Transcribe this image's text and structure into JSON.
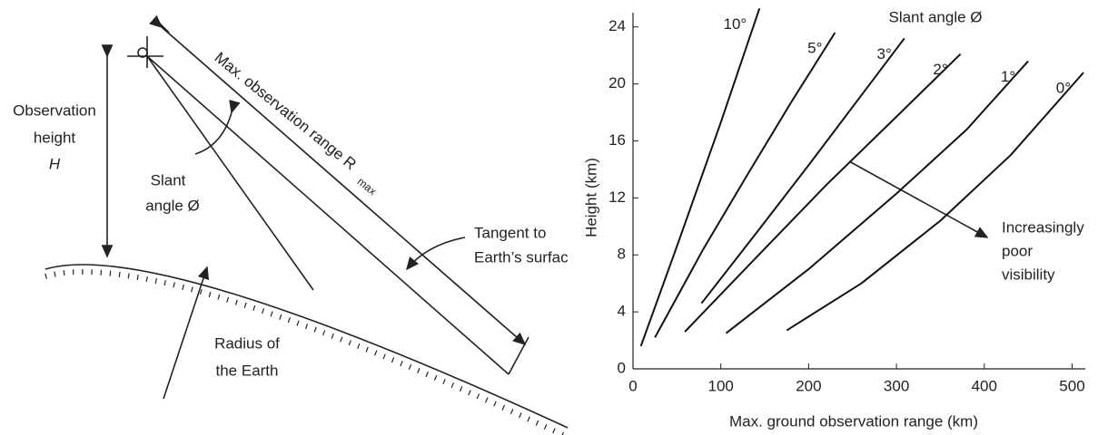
{
  "diagram": {
    "observation_height": [
      "Observation",
      "height",
      "H"
    ],
    "slant_angle": [
      "Slant",
      "angle Ø"
    ],
    "max_range": "Max. observation range R",
    "max_range_sub": "max",
    "tangent": [
      "Tangent to",
      "Earth’s surfac"
    ],
    "radius": [
      "Radius of",
      "the Earth"
    ]
  },
  "chart_data": {
    "type": "line",
    "legend_title": "Slant angle Ø",
    "x_label": "Max. ground observation range (km)",
    "y_label": "Height (km)",
    "annotation": [
      "Increasingly",
      "poor",
      "visibility"
    ],
    "xlim": [
      0,
      515
    ],
    "ylim": [
      0,
      25
    ],
    "xticks": [
      0,
      100,
      200,
      300,
      400,
      500
    ],
    "yticks": [
      0,
      4,
      8,
      12,
      16,
      20,
      24
    ],
    "series": [
      {
        "name": "10°",
        "color": "#111111",
        "x": [
          9,
          50,
          100,
          144
        ],
        "values": [
          1.6,
          8.6,
          17.3,
          25.3
        ]
      },
      {
        "name": "5°",
        "color": "#111111",
        "x": [
          25,
          80,
          130,
          180,
          230
        ],
        "values": [
          2.2,
          8.4,
          13.6,
          18.7,
          23.6
        ]
      },
      {
        "name": "3°",
        "color": "#111111",
        "x": [
          78,
          140,
          200,
          260,
          309
        ],
        "values": [
          4.6,
          9.5,
          14.3,
          19.2,
          23.2
        ]
      },
      {
        "name": "2°",
        "color": "#111111",
        "x": [
          59,
          140,
          220,
          300,
          373
        ],
        "values": [
          2.6,
          7.8,
          12.9,
          17.7,
          22.1
        ]
      },
      {
        "name": "1°",
        "color": "#111111",
        "x": [
          106,
          200,
          300,
          380,
          450
        ],
        "values": [
          2.5,
          7,
          12.3,
          16.8,
          21.6
        ]
      },
      {
        "name": "0°",
        "color": "#111111",
        "x": [
          175,
          260,
          350,
          430,
          513
        ],
        "values": [
          2.7,
          6,
          10.4,
          15,
          20.8
        ]
      }
    ]
  }
}
